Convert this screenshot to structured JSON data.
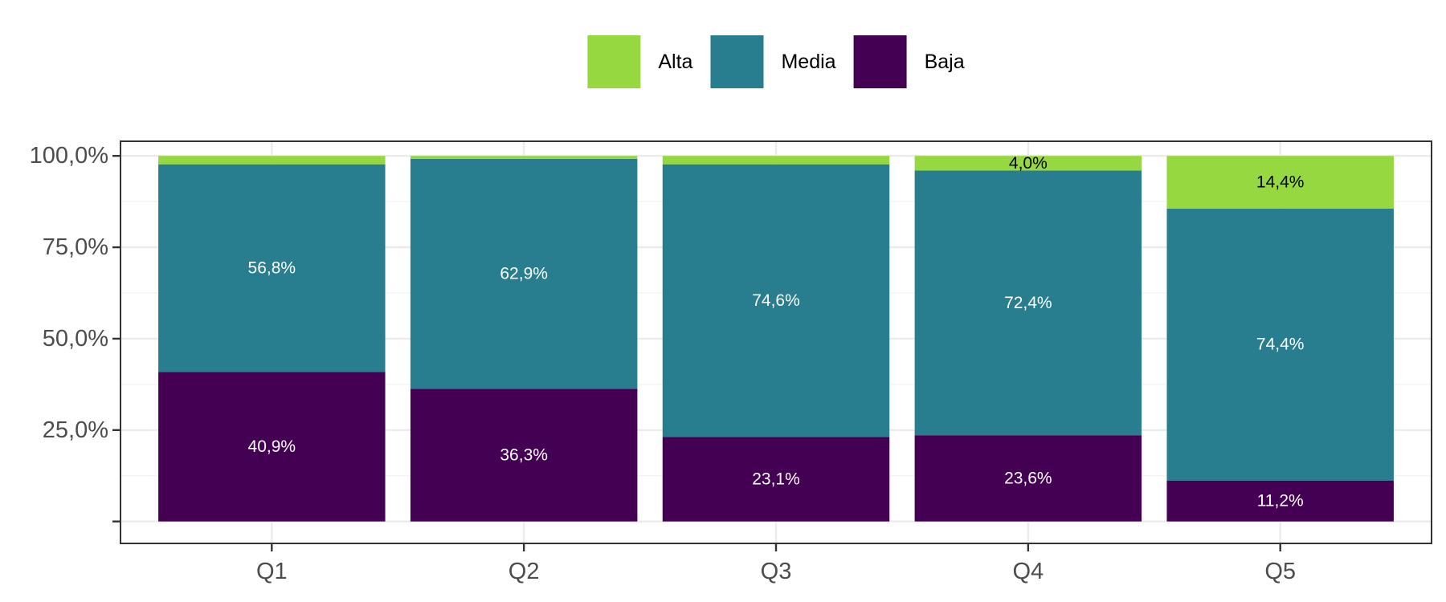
{
  "chart_data": {
    "type": "bar",
    "stacked": true,
    "categories": [
      "Q1",
      "Q2",
      "Q3",
      "Q4",
      "Q5"
    ],
    "series": [
      {
        "name": "Baja",
        "color": "#440154",
        "values": [
          40.9,
          36.3,
          23.1,
          23.6,
          11.2
        ],
        "labels": [
          "40,9%",
          "36,3%",
          "23,1%",
          "23,6%",
          "11,2%"
        ],
        "label_color": "#ffffff"
      },
      {
        "name": "Media",
        "color": "#287d8e",
        "values": [
          56.8,
          62.9,
          74.6,
          72.4,
          74.4
        ],
        "labels": [
          "56,8%",
          "62,9%",
          "74,6%",
          "72,4%",
          "74,4%"
        ],
        "label_color": "#ffffff"
      },
      {
        "name": "Alta",
        "color": "#95d840",
        "values": [
          2.3,
          0.8,
          2.3,
          4.0,
          14.4
        ],
        "labels": [
          "",
          "",
          "",
          "4,0%",
          "14,4%"
        ],
        "label_color": "#000000"
      }
    ],
    "legend": {
      "position": "top",
      "order": [
        "Alta",
        "Media",
        "Baja"
      ]
    },
    "y_ticks": [
      0,
      25,
      50,
      75,
      100
    ],
    "y_tick_labels": [
      "",
      "25,0%",
      "50,0%",
      "75,0%",
      "100,0%"
    ],
    "ylim": [
      -6,
      104
    ],
    "grid": true,
    "xlabel": "",
    "ylabel": "",
    "title": ""
  }
}
